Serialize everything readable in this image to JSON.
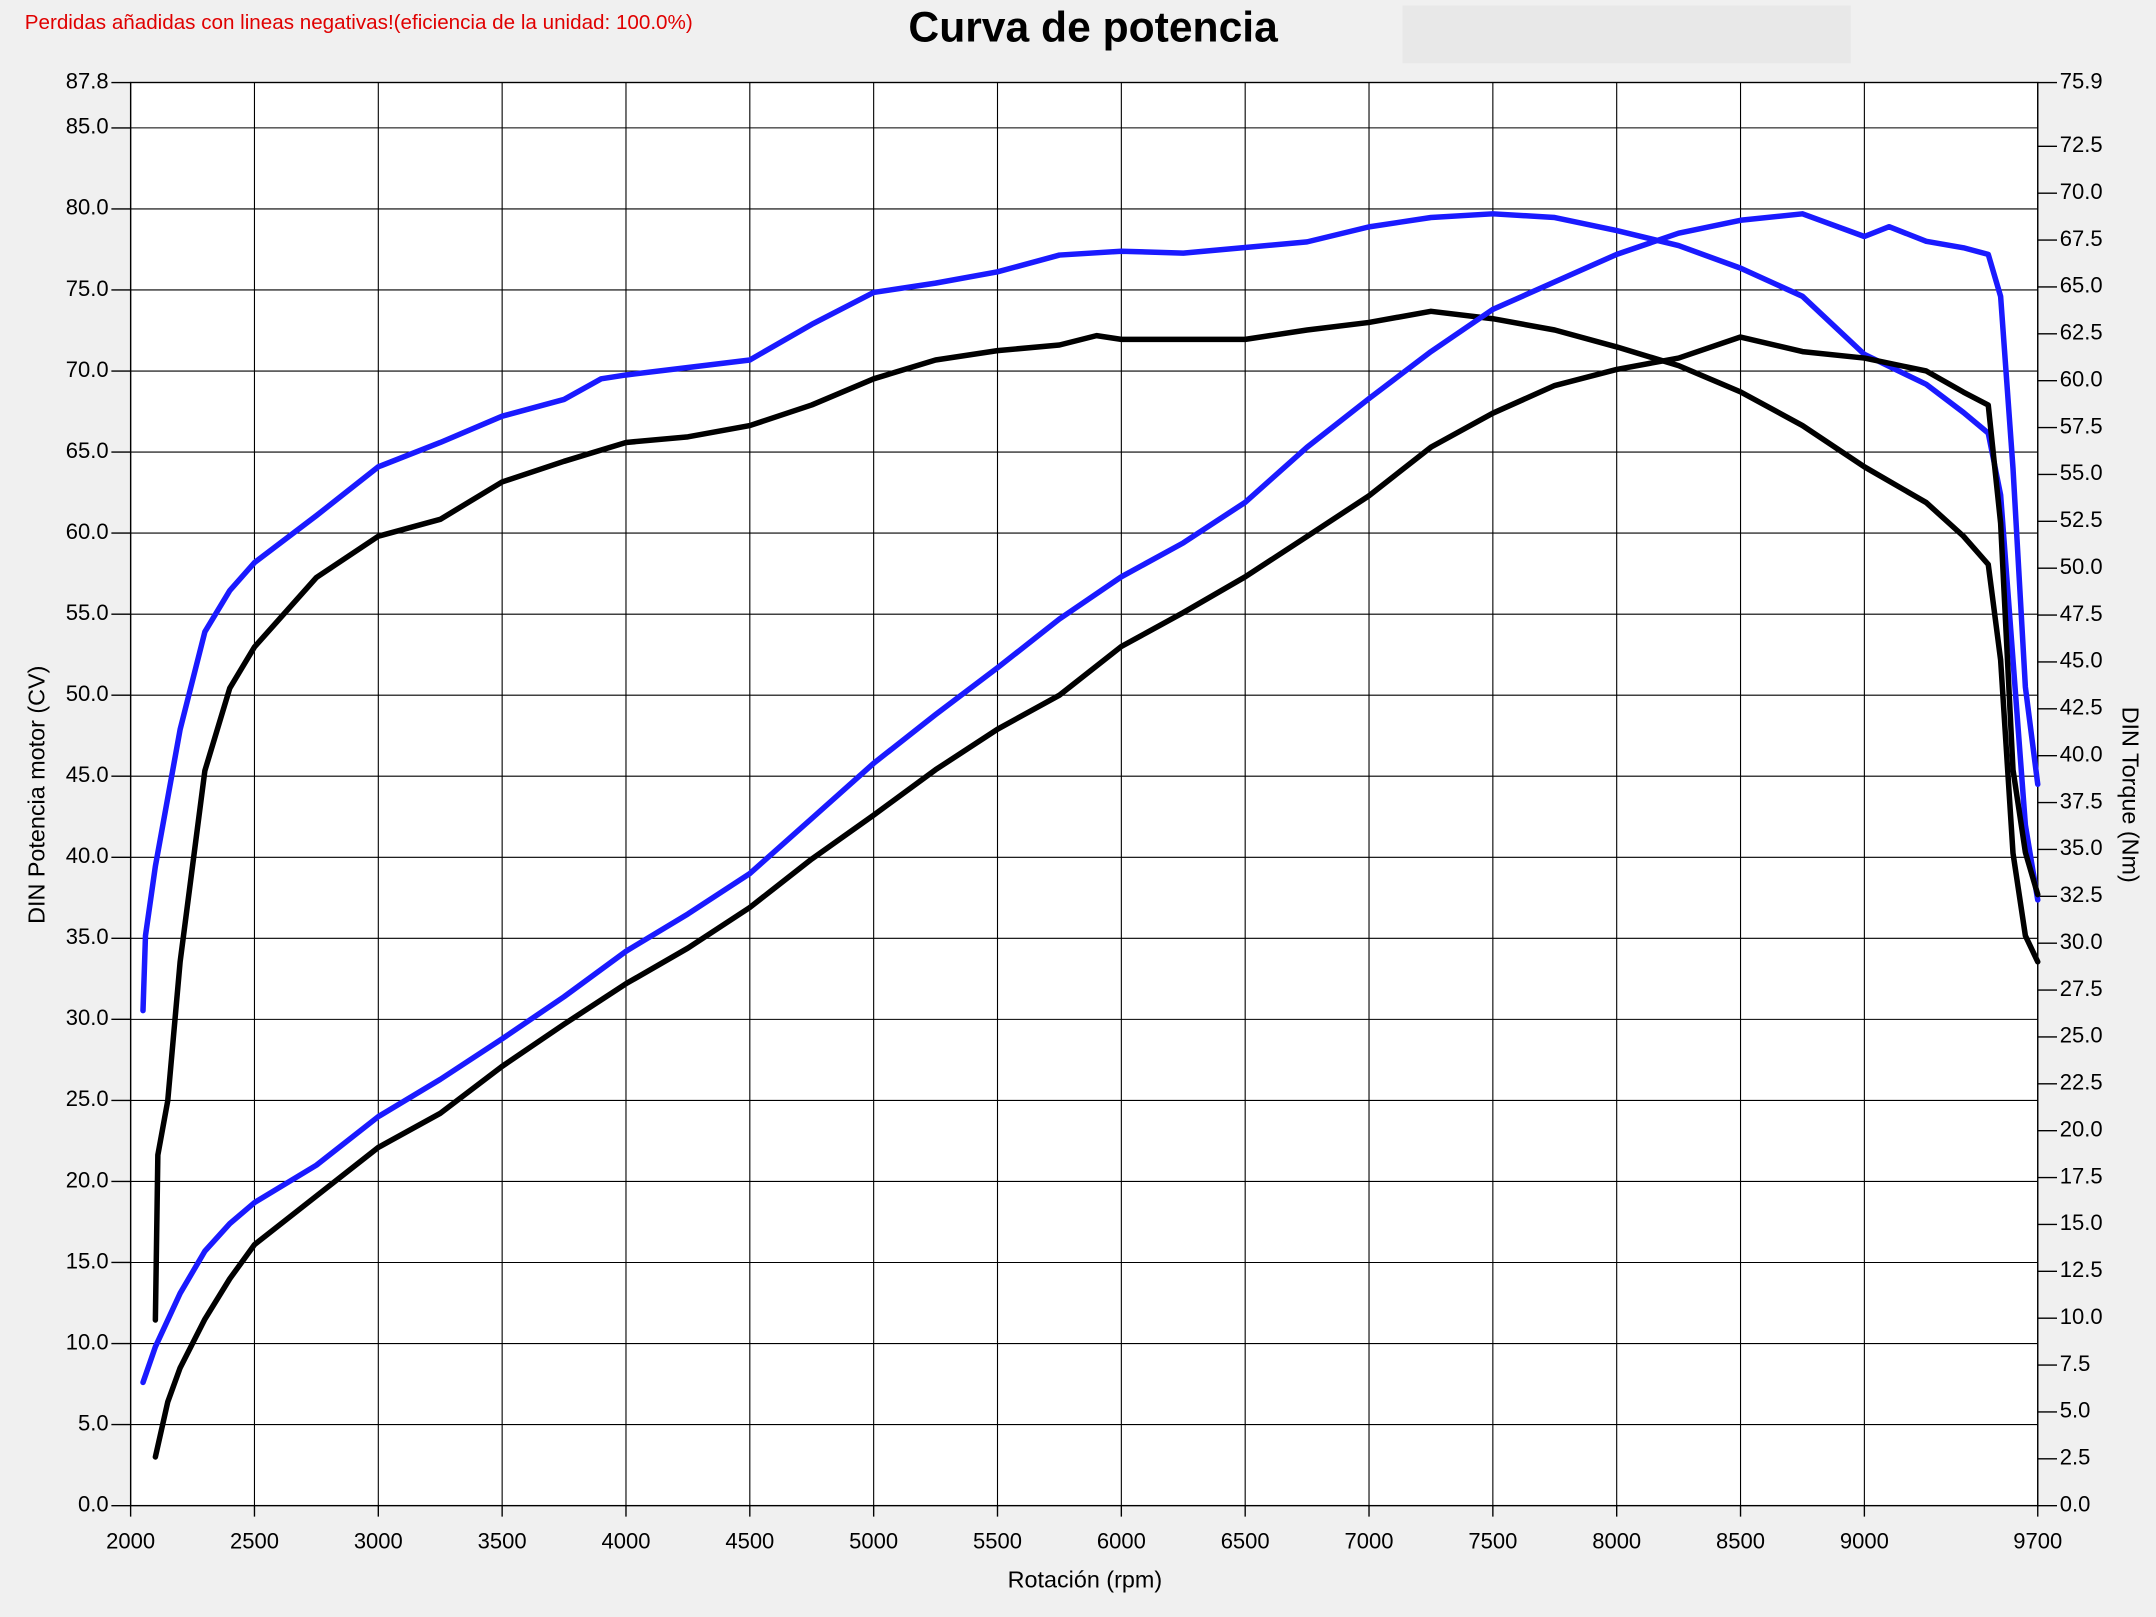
{
  "chart_data": {
    "type": "line",
    "title": "Curva de potencia",
    "note": "Perdidas añadidas con lineas negativas!(eficiencia de la unidad: 100.0%)",
    "x_label": "Rotación (rpm)",
    "y_label": "DIN Potencia motor (CV)",
    "y2_label": "DIN Torque (Nm)",
    "grid": true,
    "xlim": [
      2000,
      9700
    ],
    "xticks": [
      2000,
      2500,
      3000,
      3500,
      4000,
      4500,
      5000,
      5500,
      6000,
      6500,
      7000,
      7500,
      8000,
      8500,
      9000,
      9700
    ],
    "ylim": [
      0,
      87.8
    ],
    "yticks": [
      {
        "value": 0,
        "label": "0.0"
      },
      {
        "value": 5,
        "label": "5.0"
      },
      {
        "value": 10,
        "label": "10.0"
      },
      {
        "value": 15,
        "label": "15.0"
      },
      {
        "value": 20,
        "label": "20.0"
      },
      {
        "value": 25,
        "label": "25.0"
      },
      {
        "value": 30,
        "label": "30.0"
      },
      {
        "value": 35,
        "label": "35.0"
      },
      {
        "value": 40,
        "label": "40.0"
      },
      {
        "value": 45,
        "label": "45.0"
      },
      {
        "value": 50,
        "label": "50.0"
      },
      {
        "value": 55,
        "label": "55.0"
      },
      {
        "value": 60,
        "label": "60.0"
      },
      {
        "value": 65,
        "label": "65.0"
      },
      {
        "value": 70,
        "label": "70.0"
      },
      {
        "value": 75,
        "label": "75.0"
      },
      {
        "value": 80,
        "label": "80.0"
      },
      {
        "value": 85,
        "label": "85.0"
      },
      87.8
    ],
    "y2lim": [
      0,
      75.9
    ],
    "y2ticks": [
      {
        "value": 0,
        "label": "0.0"
      },
      2.5,
      {
        "value": 5,
        "label": "5.0"
      },
      7.5,
      {
        "value": 10,
        "label": "10.0"
      },
      12.5,
      {
        "value": 15,
        "label": "15.0"
      },
      17.5,
      {
        "value": 20,
        "label": "20.0"
      },
      22.5,
      {
        "value": 25,
        "label": "25.0"
      },
      27.5,
      {
        "value": 30,
        "label": "30.0"
      },
      32.5,
      {
        "value": 35,
        "label": "35.0"
      },
      37.5,
      {
        "value": 40,
        "label": "40.0"
      },
      42.5,
      {
        "value": 45,
        "label": "45.0"
      },
      47.5,
      {
        "value": 50,
        "label": "50.0"
      },
      52.5,
      {
        "value": 55,
        "label": "55.0"
      },
      57.5,
      {
        "value": 60,
        "label": "60.0"
      },
      62.5,
      {
        "value": 65,
        "label": "65.0"
      },
      67.5,
      {
        "value": 70,
        "label": "70.0"
      },
      72.5,
      75.9
    ],
    "series": [
      {
        "color": "#1a1aff",
        "axis": "y2",
        "x": [
          2050,
          2060,
          2100,
          2200,
          2300,
          2400,
          2500,
          2750,
          3000,
          3250,
          3500,
          3750,
          3900,
          4000,
          4250,
          4500,
          4750,
          5000,
          5250,
          5500,
          5750,
          6000,
          6250,
          6500,
          6750,
          7000,
          7250,
          7500,
          7750,
          8000,
          8250,
          8500,
          8750,
          9000,
          9250,
          9400,
          9500,
          9550,
          9600,
          9650,
          9700
        ],
        "values": [
          26.4,
          30.4,
          34.1,
          41.4,
          46.6,
          48.8,
          50.3,
          52.8,
          55.4,
          56.7,
          58.1,
          59.0,
          60.1,
          60.3,
          60.7,
          61.1,
          63.0,
          64.7,
          65.2,
          65.8,
          66.7,
          66.9,
          66.8,
          67.1,
          67.4,
          68.2,
          68.7,
          68.9,
          68.7,
          68.0,
          67.2,
          66.0,
          64.5,
          61.4,
          59.8,
          58.3,
          57.2,
          53.9,
          45.1,
          36.3,
          32.3
        ]
      },
      {
        "color": "#000000",
        "axis": "y2",
        "x": [
          2100,
          2110,
          2150,
          2200,
          2250,
          2300,
          2400,
          2500,
          2750,
          3000,
          3250,
          3500,
          3750,
          4000,
          4250,
          4500,
          4750,
          5000,
          5250,
          5500,
          5750,
          5900,
          6000,
          6250,
          6500,
          6750,
          7000,
          7250,
          7500,
          7750,
          8000,
          8250,
          8500,
          8750,
          9000,
          9250,
          9400,
          9500,
          9550,
          9600,
          9650,
          9700
        ],
        "values": [
          9.9,
          18.7,
          21.6,
          29.0,
          34.1,
          39.2,
          43.6,
          45.8,
          49.5,
          51.7,
          52.6,
          54.6,
          55.7,
          56.7,
          57.0,
          57.6,
          58.7,
          60.1,
          61.1,
          61.6,
          61.9,
          62.4,
          62.2,
          62.2,
          62.2,
          62.7,
          63.1,
          63.7,
          63.3,
          62.7,
          61.8,
          60.8,
          59.4,
          57.6,
          55.4,
          53.5,
          51.7,
          50.2,
          45.1,
          34.8,
          30.4,
          29.0
        ]
      },
      {
        "color": "#1a1aff",
        "x": [
          2050,
          2100,
          2200,
          2300,
          2400,
          2500,
          2750,
          3000,
          3250,
          3500,
          3750,
          4000,
          4250,
          4500,
          4750,
          5000,
          5250,
          5500,
          5750,
          6000,
          6250,
          6500,
          6750,
          7000,
          7250,
          7500,
          7750,
          8000,
          8250,
          8500,
          8750,
          9000,
          9100,
          9250,
          9400,
          9500,
          9550,
          9600,
          9650,
          9700
        ],
        "values": [
          7.6,
          9.8,
          13.1,
          15.7,
          17.4,
          18.7,
          21.0,
          24.0,
          26.3,
          28.8,
          31.4,
          34.2,
          36.5,
          39.0,
          42.4,
          45.8,
          48.8,
          51.7,
          54.7,
          57.3,
          59.4,
          61.9,
          65.3,
          68.3,
          71.2,
          73.8,
          75.5,
          77.2,
          78.5,
          79.3,
          79.7,
          78.3,
          78.9,
          78.0,
          77.6,
          77.2,
          74.6,
          64.0,
          50.5,
          44.5
        ]
      },
      {
        "color": "#000000",
        "x": [
          2100,
          2150,
          2200,
          2300,
          2400,
          2500,
          2750,
          3000,
          3250,
          3500,
          3750,
          4000,
          4250,
          4500,
          4750,
          5000,
          5250,
          5500,
          5750,
          6000,
          6250,
          6500,
          6750,
          7000,
          7250,
          7500,
          7750,
          8000,
          8250,
          8500,
          8750,
          9000,
          9250,
          9400,
          9500,
          9550,
          9600,
          9650,
          9700
        ],
        "values": [
          3.0,
          6.4,
          8.5,
          11.5,
          14.0,
          16.1,
          19.1,
          22.1,
          24.2,
          27.1,
          29.7,
          32.2,
          34.4,
          36.9,
          39.9,
          42.6,
          45.4,
          47.9,
          50.0,
          53.0,
          55.1,
          57.3,
          59.8,
          62.3,
          65.3,
          67.4,
          69.1,
          70.1,
          70.8,
          72.1,
          71.2,
          70.8,
          70.0,
          68.7,
          67.9,
          60.6,
          45.4,
          40.3,
          37.7
        ]
      }
    ]
  }
}
